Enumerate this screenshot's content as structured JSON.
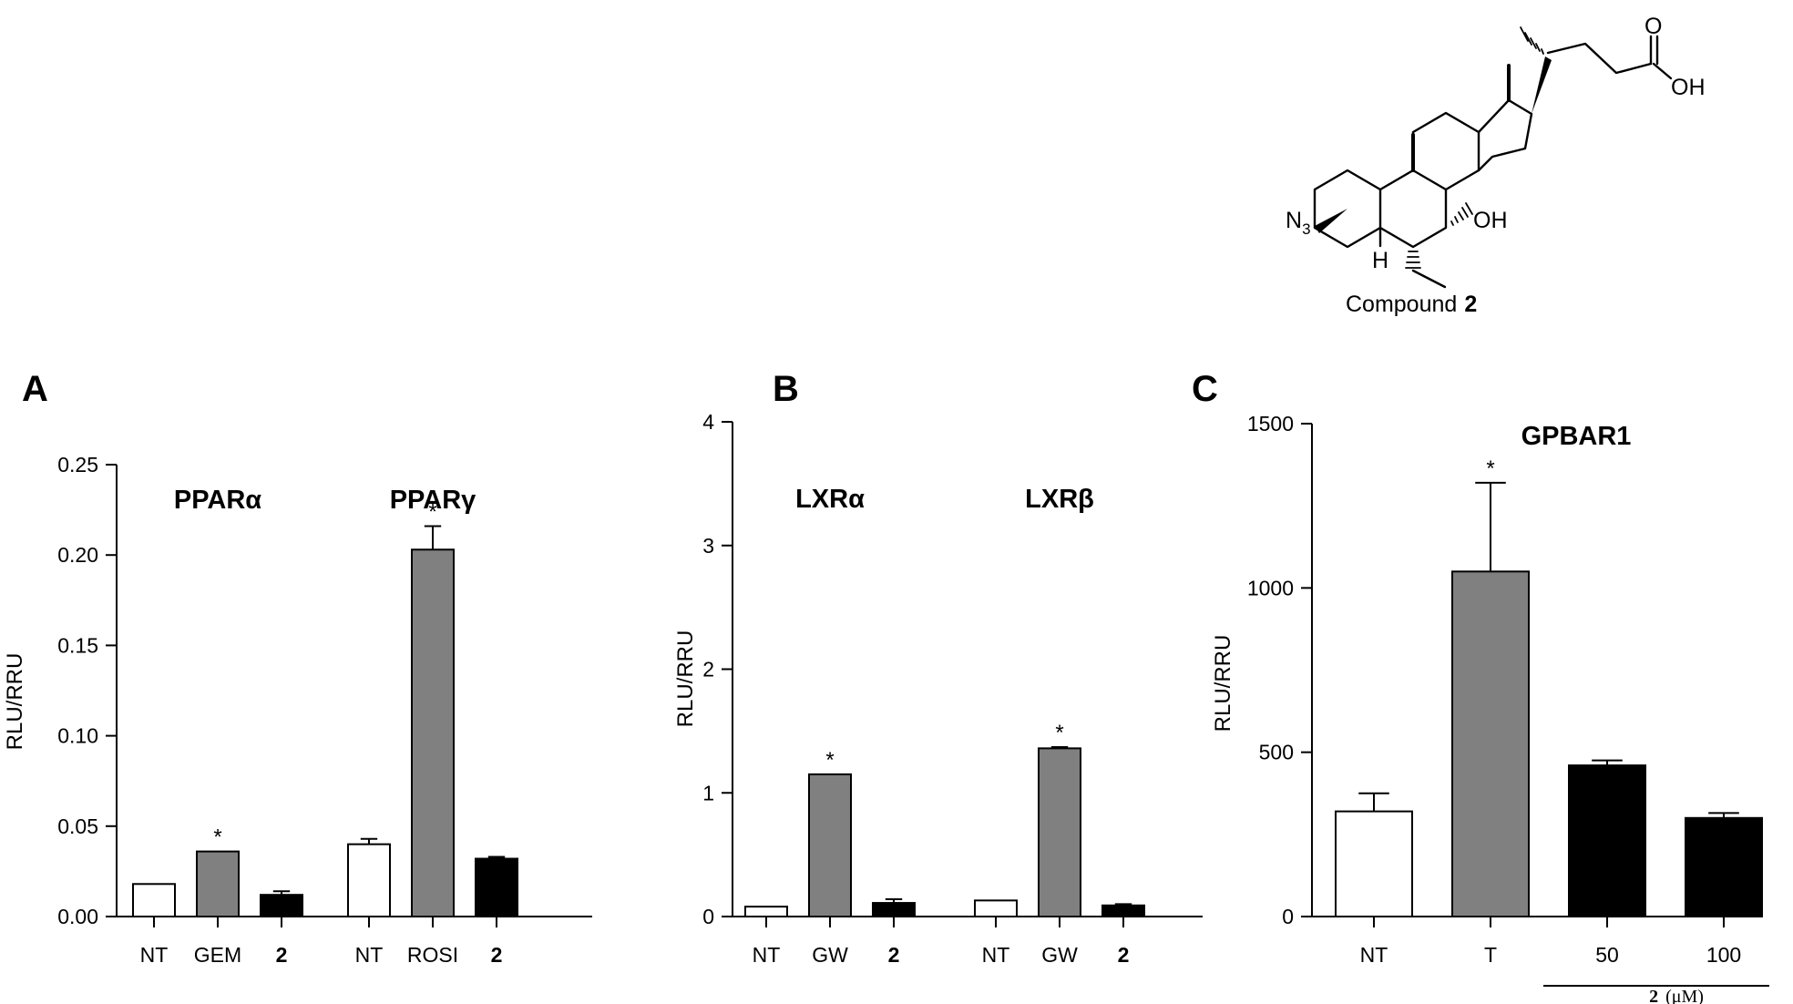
{
  "compound": {
    "atoms": {
      "o": "O",
      "oh1": "OH",
      "oh2": "OH",
      "n3": "N",
      "n3sub": "3",
      "h": "H"
    },
    "label": "Compound",
    "label_num": "2"
  },
  "chart_data": [
    {
      "panel_label": "A",
      "type": "bar",
      "ylabel": "RLU/RRU",
      "ylim": [
        0,
        0.25
      ],
      "yticks": [
        "0.00",
        "0.05",
        "0.10",
        "0.15",
        "0.20",
        "0.25"
      ],
      "groups": [
        {
          "title": "PPARα",
          "categories": [
            "NT",
            "GEM",
            "2"
          ],
          "values": [
            0.018,
            0.036,
            0.012
          ],
          "errors": [
            0,
            0,
            0.002
          ],
          "colors": [
            "#ffffff",
            "#808080",
            "#000000"
          ],
          "significant": [
            false,
            true,
            false
          ]
        },
        {
          "title": "PPARγ",
          "categories": [
            "NT",
            "ROSI",
            "2"
          ],
          "values": [
            0.04,
            0.203,
            0.032
          ],
          "errors": [
            0.003,
            0.013,
            0.001
          ],
          "colors": [
            "#ffffff",
            "#808080",
            "#000000"
          ],
          "significant": [
            false,
            true,
            false
          ]
        }
      ],
      "bold_categories": [
        "2"
      ],
      "significance_marker": "*"
    },
    {
      "panel_label": "B",
      "type": "bar",
      "ylabel": "RLU/RRU",
      "ylim": [
        0,
        4
      ],
      "yticks": [
        "0",
        "1",
        "2",
        "3",
        "4"
      ],
      "groups": [
        {
          "title": "LXRα",
          "categories": [
            "NT",
            "GW",
            "2"
          ],
          "values": [
            0.08,
            1.15,
            0.11
          ],
          "errors": [
            0,
            0,
            0.03
          ],
          "colors": [
            "#ffffff",
            "#808080",
            "#000000"
          ],
          "significant": [
            false,
            true,
            false
          ]
        },
        {
          "title": "LXRβ",
          "categories": [
            "NT",
            "GW",
            "2"
          ],
          "values": [
            0.13,
            1.36,
            0.09
          ],
          "errors": [
            0,
            0.01,
            0.01
          ],
          "colors": [
            "#ffffff",
            "#808080",
            "#000000"
          ],
          "significant": [
            false,
            true,
            false
          ]
        }
      ],
      "bold_categories": [
        "2"
      ],
      "significance_marker": "*"
    },
    {
      "panel_label": "C",
      "type": "bar",
      "ylabel": "RLU/RRU",
      "ylim": [
        0,
        1500
      ],
      "yticks": [
        "0",
        "500",
        "1000",
        "1500"
      ],
      "groups": [
        {
          "title": "GPBAR1",
          "categories": [
            "NT",
            "T",
            "50",
            "100"
          ],
          "values": [
            320,
            1050,
            460,
            300
          ],
          "errors": [
            55,
            270,
            15,
            15
          ],
          "colors": [
            "#ffffff",
            "#808080",
            "#000000",
            "#000000"
          ],
          "significant": [
            false,
            true,
            false,
            false
          ]
        }
      ],
      "bold_categories": [],
      "significance_marker": "*",
      "dose_label": "2",
      "dose_unit": "(μM)"
    }
  ]
}
